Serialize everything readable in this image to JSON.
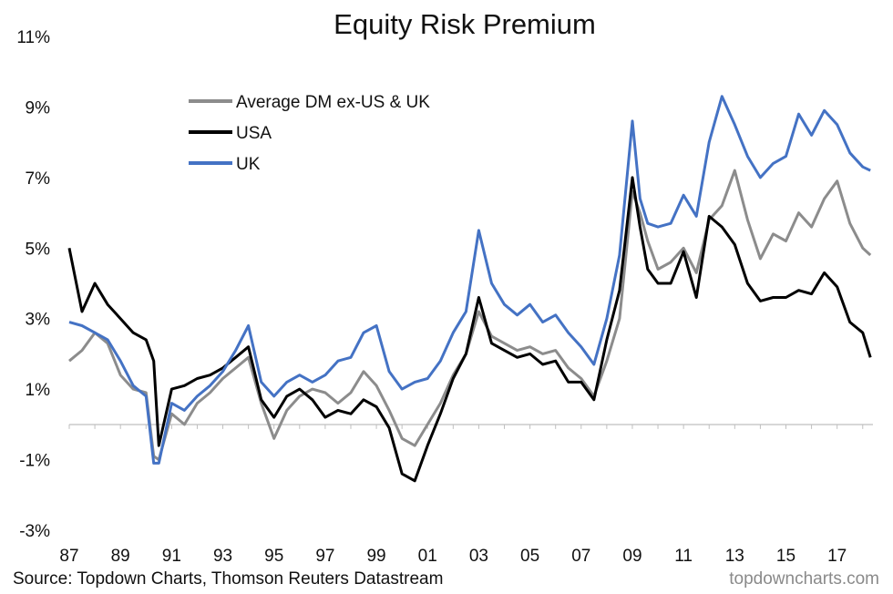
{
  "chart_data": {
    "type": "line",
    "title": "Equity Risk Premium",
    "xlabel": "",
    "ylabel": "",
    "x_tick_labels": [
      "87",
      "89",
      "91",
      "93",
      "95",
      "97",
      "99",
      "01",
      "03",
      "05",
      "07",
      "09",
      "11",
      "13",
      "15",
      "17"
    ],
    "y_tick_labels": [
      "11%",
      "9%",
      "7%",
      "5%",
      "3%",
      "1%",
      "-1%",
      "-3%"
    ],
    "ylim": [
      -3,
      11
    ],
    "xlim": [
      1987,
      2018.4
    ],
    "grid": false,
    "legend_position": "top-left",
    "x": [
      1987.0,
      1987.5,
      1988.0,
      1988.5,
      1989.0,
      1989.5,
      1990.0,
      1990.3,
      1990.5,
      1991.0,
      1991.5,
      1992.0,
      1992.5,
      1993.0,
      1993.5,
      1994.0,
      1994.5,
      1995.0,
      1995.5,
      1996.0,
      1996.5,
      1997.0,
      1997.5,
      1998.0,
      1998.5,
      1999.0,
      1999.5,
      2000.0,
      2000.5,
      2001.0,
      2001.5,
      2002.0,
      2002.5,
      2003.0,
      2003.5,
      2004.0,
      2004.5,
      2005.0,
      2005.5,
      2006.0,
      2006.5,
      2007.0,
      2007.5,
      2008.0,
      2008.5,
      2009.0,
      2009.3,
      2009.6,
      2010.0,
      2010.5,
      2011.0,
      2011.5,
      2012.0,
      2012.5,
      2013.0,
      2013.5,
      2014.0,
      2014.5,
      2015.0,
      2015.5,
      2016.0,
      2016.5,
      2017.0,
      2017.5,
      2018.0,
      2018.3
    ],
    "series": [
      {
        "name": "Average DM ex-US & UK",
        "color": "#8c8c8c",
        "values": [
          1.8,
          2.1,
          2.6,
          2.3,
          1.4,
          1.0,
          0.9,
          -0.9,
          -1.0,
          0.3,
          0.0,
          0.6,
          0.9,
          1.3,
          1.6,
          1.9,
          0.6,
          -0.4,
          0.4,
          0.8,
          1.0,
          0.9,
          0.6,
          0.9,
          1.5,
          1.1,
          0.4,
          -0.4,
          -0.6,
          0.0,
          0.6,
          1.4,
          2.0,
          3.2,
          2.5,
          2.3,
          2.1,
          2.2,
          2.0,
          2.1,
          1.6,
          1.3,
          0.8,
          1.8,
          3.0,
          6.6,
          6.0,
          5.2,
          4.4,
          4.6,
          5.0,
          4.3,
          5.8,
          6.2,
          7.2,
          5.8,
          4.7,
          5.4,
          5.2,
          6.0,
          5.6,
          6.4,
          6.9,
          5.7,
          5.0,
          4.8
        ]
      },
      {
        "name": "USA",
        "color": "#000000",
        "values": [
          5.0,
          3.2,
          4.0,
          3.4,
          3.0,
          2.6,
          2.4,
          1.8,
          -0.6,
          1.0,
          1.1,
          1.3,
          1.4,
          1.6,
          1.9,
          2.2,
          0.7,
          0.2,
          0.8,
          1.0,
          0.7,
          0.2,
          0.4,
          0.3,
          0.7,
          0.5,
          -0.1,
          -1.4,
          -1.6,
          -0.6,
          0.3,
          1.3,
          2.0,
          3.6,
          2.3,
          2.1,
          1.9,
          2.0,
          1.7,
          1.8,
          1.2,
          1.2,
          0.7,
          2.4,
          3.8,
          7.0,
          5.6,
          4.4,
          4.0,
          4.0,
          4.9,
          3.6,
          5.9,
          5.6,
          5.1,
          4.0,
          3.5,
          3.6,
          3.6,
          3.8,
          3.7,
          4.3,
          3.9,
          2.9,
          2.6,
          1.9
        ]
      },
      {
        "name": "UK",
        "color": "#4472c4",
        "values": [
          2.9,
          2.8,
          2.6,
          2.4,
          1.8,
          1.1,
          0.8,
          -1.1,
          -1.1,
          0.6,
          0.4,
          0.8,
          1.1,
          1.5,
          2.1,
          2.8,
          1.2,
          0.8,
          1.2,
          1.4,
          1.2,
          1.4,
          1.8,
          1.9,
          2.6,
          2.8,
          1.5,
          1.0,
          1.2,
          1.3,
          1.8,
          2.6,
          3.2,
          5.5,
          4.0,
          3.4,
          3.1,
          3.4,
          2.9,
          3.1,
          2.6,
          2.2,
          1.7,
          3.0,
          4.8,
          8.6,
          6.4,
          5.7,
          5.6,
          5.7,
          6.5,
          5.9,
          8.0,
          9.3,
          8.5,
          7.6,
          7.0,
          7.4,
          7.6,
          8.8,
          8.2,
          8.9,
          8.5,
          7.7,
          7.3,
          7.2
        ]
      }
    ]
  },
  "footer": {
    "source": "Source: Topdown Charts, Thomson Reuters Datastream",
    "brand": "topdowncharts.com"
  }
}
